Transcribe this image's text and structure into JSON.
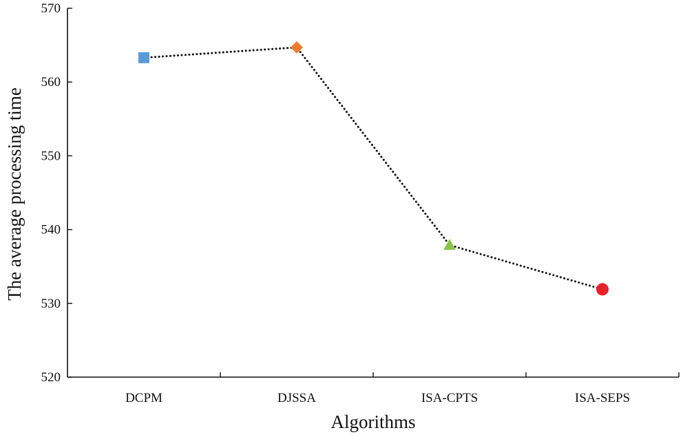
{
  "chart_data": {
    "type": "line",
    "title": "",
    "xlabel": "Algorithms",
    "ylabel": "The average processing time",
    "categories": [
      "DCPM",
      "DJSSA",
      "ISA-CPTS",
      "ISA-SEPS"
    ],
    "values": [
      563.3,
      564.7,
      537.9,
      531.9
    ],
    "ylim": [
      520,
      570
    ],
    "yticks": [
      520,
      530,
      540,
      550,
      560,
      570
    ],
    "grid": false,
    "line_style": "dotted",
    "line_color": "#111111",
    "markers": [
      {
        "shape": "square",
        "color": "#5b9bd5"
      },
      {
        "shape": "diamond",
        "color": "#ed7d31"
      },
      {
        "shape": "triangle",
        "color": "#8bc34a"
      },
      {
        "shape": "circle",
        "color": "#e8202a"
      }
    ]
  }
}
